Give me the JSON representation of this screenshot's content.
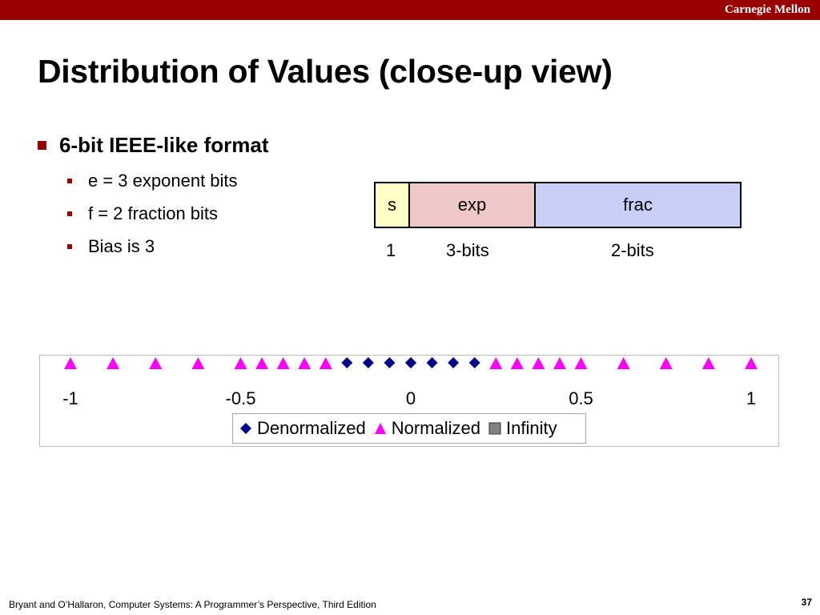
{
  "header": {
    "institution": "Carnegie Mellon",
    "bar_color": "#990000"
  },
  "title": "Distribution of Values (close-up view)",
  "bullets": {
    "main": "6-bit IEEE-like format",
    "sub": [
      "e = 3 exponent bits",
      "f = 2 fraction bits",
      "Bias is 3"
    ]
  },
  "format_diagram": {
    "fields": [
      {
        "label": "s",
        "bits": "1",
        "color": "#ffffc6"
      },
      {
        "label": "exp",
        "bits": "3-bits",
        "color": "#efc8c8"
      },
      {
        "label": "frac",
        "bits": "2-bits",
        "color": "#c8cef6"
      }
    ]
  },
  "chart_data": {
    "type": "scatter",
    "xlim": [
      -1,
      1
    ],
    "tick_labels": [
      "-1",
      "-0.5",
      "0",
      "0.5",
      "1"
    ],
    "ticks": [
      -1,
      -0.5,
      0,
      0.5,
      1
    ],
    "legend": [
      "Denormalized",
      "Normalized",
      "Infinity"
    ],
    "legend_placement": "bottom-center",
    "grid": false,
    "series": [
      {
        "name": "Denormalized",
        "marker": "diamond",
        "color": "#00008b",
        "values": [
          -0.1875,
          -0.125,
          -0.0625,
          0,
          0,
          0.0625,
          0.125,
          0.1875
        ]
      },
      {
        "name": "Normalized",
        "marker": "triangle",
        "color": "#ff00ff",
        "values": [
          -1,
          -0.875,
          -0.75,
          -0.625,
          -0.5,
          -0.4375,
          -0.375,
          -0.3125,
          -0.25,
          0.25,
          0.3125,
          0.375,
          0.4375,
          0.5,
          0.625,
          0.75,
          0.875,
          1
        ]
      },
      {
        "name": "Infinity",
        "marker": "square",
        "color": "#808080",
        "values": []
      }
    ]
  },
  "footer": {
    "citation": "Bryant and O’Hallaron, Computer Systems: A Programmer’s Perspective, Third Edition",
    "page": "37"
  }
}
